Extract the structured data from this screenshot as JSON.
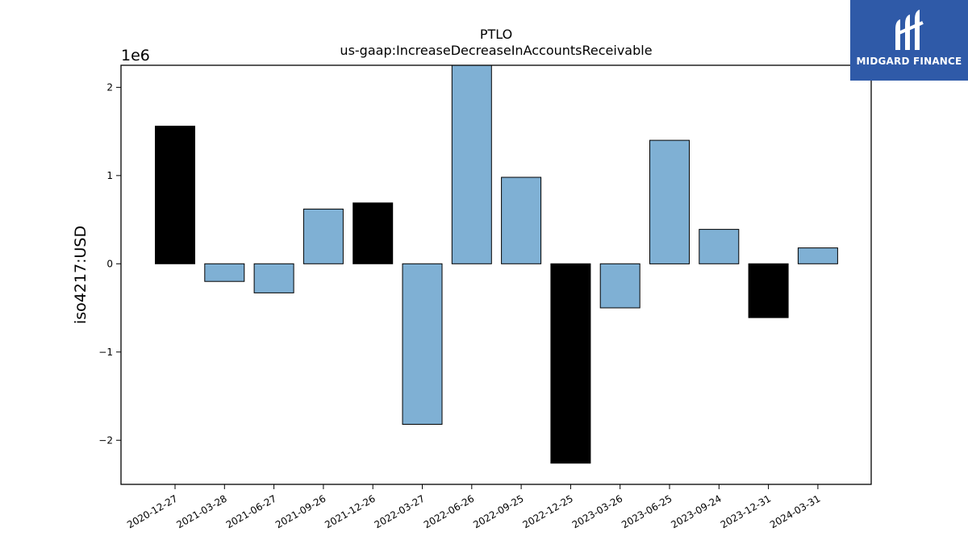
{
  "chart_data": {
    "type": "bar",
    "title": "PTLO",
    "subtitle": "us-gaap:IncreaseDecreaseInAccountsReceivable",
    "xlabel": "",
    "ylabel": "iso4217:USD",
    "y_scale_label": "1e6",
    "ylim": [
      -2500000,
      2250000
    ],
    "yticks": [
      -2000000,
      -1000000,
      0,
      1000000,
      2000000
    ],
    "ytick_labels": [
      "−2",
      "−1",
      "0",
      "1",
      "2"
    ],
    "categories": [
      "2020-12-27",
      "2021-03-28",
      "2021-06-27",
      "2021-09-26",
      "2021-12-26",
      "2022-03-27",
      "2022-06-26",
      "2022-09-25",
      "2022-12-25",
      "2023-03-26",
      "2023-06-25",
      "2023-09-24",
      "2023-12-31",
      "2024-03-31"
    ],
    "values": [
      1560000,
      -200000,
      -330000,
      620000,
      690000,
      -1820000,
      2250000,
      980000,
      -2260000,
      -500000,
      1400000,
      390000,
      -610000,
      180000
    ],
    "bar_colors": [
      "#000000",
      "#7fb0d4",
      "#7fb0d4",
      "#7fb0d4",
      "#000000",
      "#7fb0d4",
      "#7fb0d4",
      "#7fb0d4",
      "#000000",
      "#7fb0d4",
      "#7fb0d4",
      "#7fb0d4",
      "#000000",
      "#7fb0d4"
    ],
    "grid": false,
    "legend": "none"
  },
  "logo": {
    "text": "MIDGARD FINANCE",
    "background": "#2f5aa8",
    "icon": "midgard-logo-icon"
  }
}
